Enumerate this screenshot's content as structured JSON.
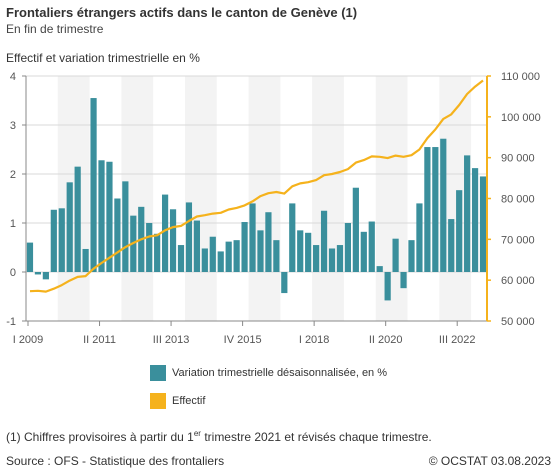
{
  "header": {
    "title": "Frontaliers étrangers actifs dans le canton de Genève (1)",
    "subtitle": "En fin de trimestre",
    "axis_title": "Effectif et variation trimestrielle en %"
  },
  "legend": {
    "bars_label": "Variation trimestrielle désaisonnalisée, en %",
    "line_label": "Effectif"
  },
  "footnote": {
    "prefix": "(1) Chiffres provisoires à partir du 1",
    "sup": "er",
    "suffix": " trimestre 2021 et révisés chaque trimestre."
  },
  "source": "Source : OFS - Statistique des frontaliers",
  "copyright": "© OCSTAT 03.08.2023",
  "colors": {
    "bars": "#3a8f9c",
    "line": "#f5b21c",
    "band": "#f3f3f3",
    "grid": "#d9d9d9"
  },
  "chart_data": {
    "type": "bar+line",
    "x_tick_labels": [
      "I 2009",
      "II 2011",
      "III 2013",
      "IV 2015",
      "I 2018",
      "II 2020",
      "III 2022"
    ],
    "x_tick_positions": [
      0,
      9,
      18,
      27,
      36,
      45,
      54
    ],
    "y_left": {
      "range": [
        -1,
        4
      ],
      "ticks": [
        "-1",
        "0",
        "1",
        "2",
        "3",
        "4"
      ]
    },
    "y_right": {
      "range": [
        50000,
        110000
      ],
      "ticks": [
        "50 000",
        "60 000",
        "70 000",
        "80 000",
        "90 000",
        "100 000",
        "110 000"
      ]
    },
    "series": [
      {
        "name": "Variation trimestrielle désaisonnalisée, en %",
        "axis": "left",
        "values": [
          0.6,
          -0.05,
          -0.15,
          1.27,
          1.3,
          1.83,
          2.15,
          0.47,
          3.55,
          2.28,
          2.25,
          1.5,
          1.85,
          1.15,
          1.33,
          1.0,
          0.78,
          1.58,
          1.28,
          0.55,
          1.42,
          1.05,
          0.48,
          0.72,
          0.42,
          0.62,
          0.65,
          1.02,
          1.4,
          0.85,
          1.22,
          0.65,
          -0.43,
          1.4,
          0.85,
          0.8,
          0.55,
          1.25,
          0.48,
          0.55,
          1.0,
          1.72,
          0.82,
          1.03,
          0.12,
          -0.58,
          0.68,
          -0.33,
          0.65,
          1.4,
          2.55,
          2.55,
          2.72,
          1.08,
          1.67,
          2.38,
          2.12,
          1.95
        ]
      },
      {
        "name": "Effectif",
        "axis": "right",
        "values": [
          57300,
          57400,
          57200,
          57900,
          58800,
          59900,
          60800,
          61000,
          62800,
          64200,
          65500,
          66800,
          68100,
          69100,
          70000,
          70700,
          71000,
          72200,
          73000,
          73300,
          74500,
          75600,
          75900,
          76300,
          76500,
          77300,
          77700,
          78300,
          79300,
          80600,
          81300,
          81600,
          81200,
          83000,
          83700,
          84000,
          84500,
          85700,
          86000,
          86500,
          87200,
          88800,
          89400,
          90300,
          90200,
          89900,
          90500,
          90200,
          90600,
          92000,
          94800,
          96900,
          99500,
          100600,
          102900,
          105600,
          107400,
          108900
        ]
      }
    ]
  }
}
